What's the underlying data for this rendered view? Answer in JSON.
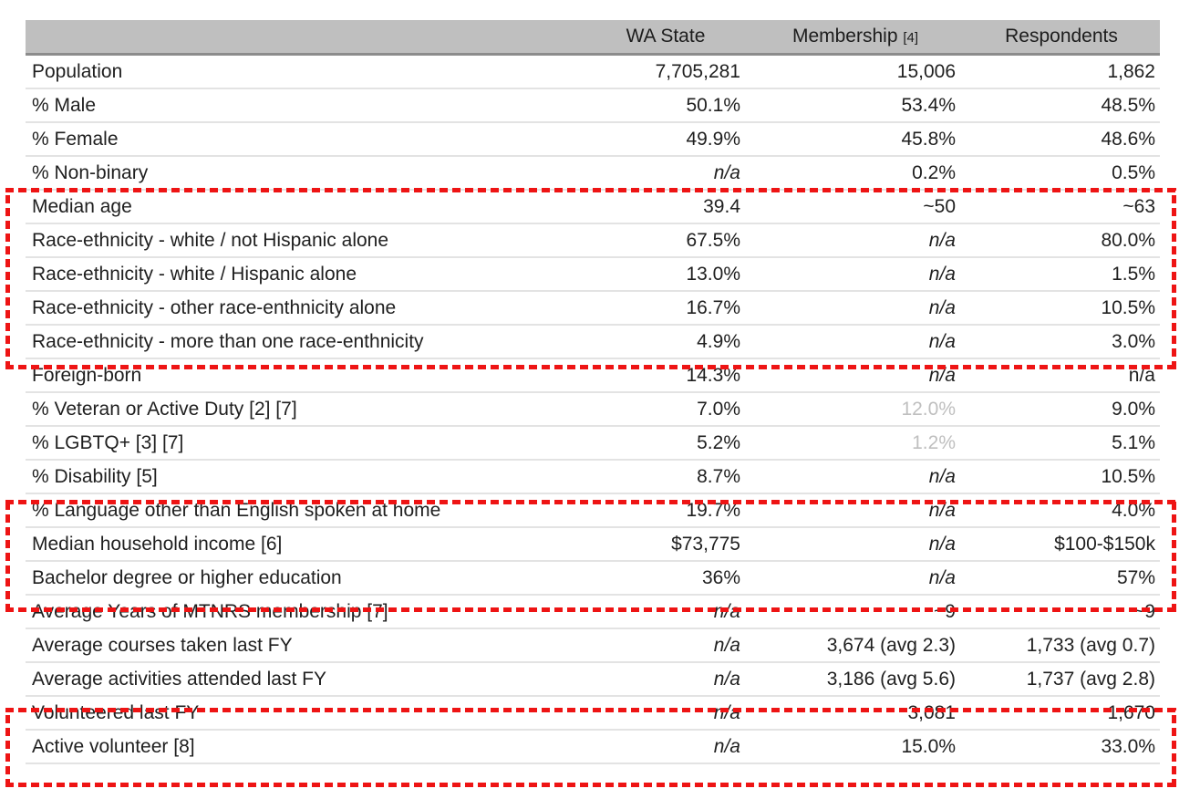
{
  "table": {
    "header": {
      "label": "",
      "wa_state": "WA State",
      "membership": "Membership",
      "membership_note": "[4]",
      "respondents": "Respondents"
    },
    "rows": [
      {
        "label": "Population",
        "wa": "7,705,281",
        "mem": "15,006",
        "resp": "1,862"
      },
      {
        "label": "% Male",
        "wa": "50.1%",
        "mem": "53.4%",
        "resp": "48.5%"
      },
      {
        "label": "% Female",
        "wa": "49.9%",
        "mem": "45.8%",
        "resp": "48.6%"
      },
      {
        "label": "% Non-binary",
        "wa": "n/a",
        "mem": "0.2%",
        "resp": "0.5%"
      },
      {
        "label": "Median age",
        "wa": "39.4",
        "mem": "~50",
        "resp": "~63"
      },
      {
        "label": "Race-ethnicity - white / not Hispanic alone",
        "wa": "67.5%",
        "mem": "n/a",
        "resp": "80.0%"
      },
      {
        "label": "Race-ethnicity - white / Hispanic alone",
        "wa": "13.0%",
        "mem": "n/a",
        "resp": "1.5%"
      },
      {
        "label": "Race-ethnicity - other race-enthnicity alone",
        "wa": "16.7%",
        "mem": "n/a",
        "resp": "10.5%"
      },
      {
        "label": "Race-ethnicity - more than one race-enthnicity",
        "wa": "4.9%",
        "mem": "n/a",
        "resp": "3.0%"
      },
      {
        "label": "Foreign-born",
        "wa": "14.3%",
        "mem": "n/a",
        "resp": "n/a"
      },
      {
        "label": "% Veteran or Active Duty [2] [7]",
        "wa": "7.0%",
        "mem": "12.0%",
        "resp": "9.0%"
      },
      {
        "label": "% LGBTQ+  [3] [7]",
        "wa": "5.2%",
        "mem": "1.2%",
        "resp": "5.1%"
      },
      {
        "label": "% Disability [5]",
        "wa": "8.7%",
        "mem": "n/a",
        "resp": "10.5%"
      },
      {
        "label": "% Language other than English spoken at home",
        "wa": "19.7%",
        "mem": "n/a",
        "resp": "4.0%"
      },
      {
        "label": "Median household income [6]",
        "wa": "$73,775",
        "mem": "n/a",
        "resp": "$100-$150k"
      },
      {
        "label": "Bachelor degree or higher education",
        "wa": "36%",
        "mem": "n/a",
        "resp": "57%"
      },
      {
        "label": "Average Years of MTNRS membership [7]",
        "wa": "n/a",
        "mem": "~9",
        "resp": "~9"
      },
      {
        "label": "Average courses taken last FY",
        "wa": "n/a",
        "mem": "3,674 (avg 2.3)",
        "resp": "1,733 (avg 0.7)"
      },
      {
        "label": "Average activities attended last FY",
        "wa": "n/a",
        "mem": "3,186 (avg 5.6)",
        "resp": "1,737 (avg 2.8)"
      },
      {
        "label": "Volunteered last FY",
        "wa": "n/a",
        "mem": "3,081",
        "resp": "1,670"
      },
      {
        "label": "Active volunteer [8]",
        "wa": "n/a",
        "mem": "15.0%",
        "resp": "33.0%"
      }
    ]
  },
  "colors": {
    "header_background": "#BFBFBF",
    "header_border": "#8C8C8C",
    "row_border": "#E3E3E3",
    "muted_value": "#BFBFBF",
    "highlight_dashed": "#EE1414"
  },
  "highlights": [
    {
      "name": "median-age-and-race-ethnicity-rows"
    },
    {
      "name": "language-income-education-rows"
    },
    {
      "name": "volunteering-rows"
    }
  ]
}
